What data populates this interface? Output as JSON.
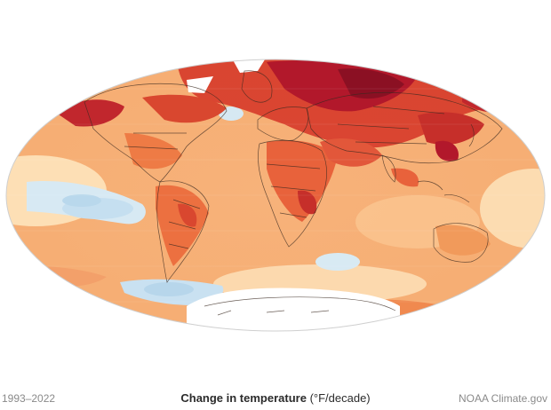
{
  "map": {
    "years": "1993–2022",
    "title_bold": "Change in temperature",
    "title_unit": " (°F/decade)",
    "credit": "NOAA Climate.gov",
    "projection": "Mollweide",
    "colors": {
      "strong_warming": "#b2182b",
      "warming": "#e34a33",
      "moderate_warming": "#f4a261",
      "slight_warming": "#fdd9a0",
      "neutral": "#fff4d6",
      "cooling": "#cfe5f2",
      "ice_sheet": "#ffffff",
      "borders": "#3a2a20"
    }
  }
}
